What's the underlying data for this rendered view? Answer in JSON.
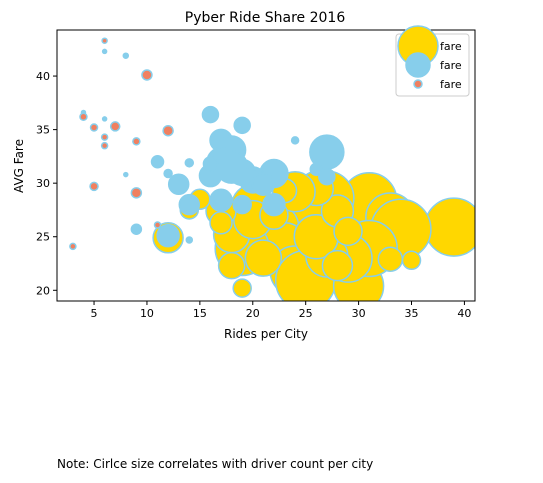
{
  "chart_data": {
    "type": "scatter",
    "title": "Pyber Ride Share 2016",
    "xlabel": "Rides per City",
    "ylabel": "AVG Fare",
    "xlim": [
      1.5,
      41
    ],
    "ylim": [
      19,
      44.3
    ],
    "xticks": [
      5,
      10,
      15,
      20,
      25,
      30,
      35,
      40
    ],
    "yticks": [
      20,
      25,
      30,
      35,
      40
    ],
    "grid": false,
    "legend_position": "top-right",
    "legend": [
      {
        "label": "fare",
        "color": "#FFD700"
      },
      {
        "label": "fare",
        "color": "#87CEEB"
      },
      {
        "label": "fare",
        "color": "#F08060"
      }
    ],
    "size_note": "Cirlce size correlates with driver count per city",
    "series": [
      {
        "color": "#FFD700",
        "edge": "#87CEEB",
        "points": [
          {
            "x": 39,
            "y": 25.9,
            "s": 58
          },
          {
            "x": 31,
            "y": 28.4,
            "s": 55
          },
          {
            "x": 33,
            "y": 26.8,
            "s": 49
          },
          {
            "x": 34,
            "y": 25.7,
            "s": 60
          },
          {
            "x": 27,
            "y": 28.6,
            "s": 54
          },
          {
            "x": 25,
            "y": 26.6,
            "s": 64
          },
          {
            "x": 22,
            "y": 25.8,
            "s": 50
          },
          {
            "x": 23,
            "y": 24.2,
            "s": 45
          },
          {
            "x": 19,
            "y": 23.9,
            "s": 54
          },
          {
            "x": 24,
            "y": 21.8,
            "s": 50
          },
          {
            "x": 25,
            "y": 20.9,
            "s": 60
          },
          {
            "x": 30,
            "y": 20.4,
            "s": 50
          },
          {
            "x": 31,
            "y": 23.9,
            "s": 56
          },
          {
            "x": 29,
            "y": 23.0,
            "s": 48
          },
          {
            "x": 27,
            "y": 23.2,
            "s": 42
          },
          {
            "x": 26,
            "y": 25.0,
            "s": 44
          },
          {
            "x": 28,
            "y": 27.4,
            "s": 32
          },
          {
            "x": 26,
            "y": 29.5,
            "s": 34
          },
          {
            "x": 24,
            "y": 29.2,
            "s": 40
          },
          {
            "x": 20,
            "y": 27.9,
            "s": 42
          },
          {
            "x": 18,
            "y": 25.2,
            "s": 36
          },
          {
            "x": 20,
            "y": 26.6,
            "s": 38
          },
          {
            "x": 17,
            "y": 27.4,
            "s": 30
          },
          {
            "x": 17,
            "y": 26.3,
            "s": 22
          },
          {
            "x": 15,
            "y": 28.5,
            "s": 20
          },
          {
            "x": 14,
            "y": 27.5,
            "s": 18
          },
          {
            "x": 12,
            "y": 24.9,
            "s": 30
          },
          {
            "x": 18,
            "y": 22.3,
            "s": 26
          },
          {
            "x": 19,
            "y": 20.2,
            "s": 18
          },
          {
            "x": 21,
            "y": 23.0,
            "s": 36
          },
          {
            "x": 22,
            "y": 27.0,
            "s": 28
          },
          {
            "x": 29,
            "y": 25.5,
            "s": 28
          },
          {
            "x": 33,
            "y": 22.9,
            "s": 24
          },
          {
            "x": 35,
            "y": 22.8,
            "s": 18
          },
          {
            "x": 23,
            "y": 29.3,
            "s": 24
          },
          {
            "x": 28,
            "y": 22.3,
            "s": 30
          }
        ]
      },
      {
        "color": "#87CEEB",
        "edge": "#87CEEB",
        "points": [
          {
            "x": 16,
            "y": 36.4,
            "s": 16
          },
          {
            "x": 19,
            "y": 35.4,
            "s": 16
          },
          {
            "x": 17,
            "y": 34.0,
            "s": 22
          },
          {
            "x": 18,
            "y": 33.1,
            "s": 28
          },
          {
            "x": 27,
            "y": 32.9,
            "s": 34
          },
          {
            "x": 11,
            "y": 32.0,
            "s": 12
          },
          {
            "x": 26,
            "y": 31.3,
            "s": 12
          },
          {
            "x": 22,
            "y": 30.9,
            "s": 28
          },
          {
            "x": 16,
            "y": 30.7,
            "s": 22
          },
          {
            "x": 13,
            "y": 29.9,
            "s": 20
          },
          {
            "x": 20,
            "y": 30.3,
            "s": 26
          },
          {
            "x": 27,
            "y": 30.6,
            "s": 16
          },
          {
            "x": 19,
            "y": 31.0,
            "s": 26
          },
          {
            "x": 17,
            "y": 32.0,
            "s": 28
          },
          {
            "x": 18,
            "y": 31.5,
            "s": 32
          },
          {
            "x": 21,
            "y": 29.9,
            "s": 22
          },
          {
            "x": 17,
            "y": 28.4,
            "s": 22
          },
          {
            "x": 14,
            "y": 28.0,
            "s": 20
          },
          {
            "x": 22,
            "y": 28.0,
            "s": 22
          },
          {
            "x": 12,
            "y": 25.1,
            "s": 22
          },
          {
            "x": 9,
            "y": 25.7,
            "s": 10
          },
          {
            "x": 14,
            "y": 24.7,
            "s": 6
          },
          {
            "x": 12,
            "y": 30.9,
            "s": 8
          },
          {
            "x": 14,
            "y": 31.9,
            "s": 8
          },
          {
            "x": 16,
            "y": 31.8,
            "s": 14
          },
          {
            "x": 24,
            "y": 34.0,
            "s": 7
          },
          {
            "x": 19,
            "y": 28.0,
            "s": 18
          },
          {
            "x": 6,
            "y": 42.3,
            "s": 4
          },
          {
            "x": 8,
            "y": 41.9,
            "s": 5
          },
          {
            "x": 6,
            "y": 36.0,
            "s": 4
          },
          {
            "x": 4,
            "y": 36.6,
            "s": 4
          },
          {
            "x": 8,
            "y": 30.8,
            "s": 4
          }
        ]
      },
      {
        "color": "#F08060",
        "edge": "#87CEEB",
        "points": [
          {
            "x": 6,
            "y": 43.3,
            "s": 5
          },
          {
            "x": 10,
            "y": 40.1,
            "s": 10
          },
          {
            "x": 4,
            "y": 36.2,
            "s": 7
          },
          {
            "x": 5,
            "y": 35.2,
            "s": 7
          },
          {
            "x": 7,
            "y": 35.3,
            "s": 9
          },
          {
            "x": 12,
            "y": 34.9,
            "s": 10
          },
          {
            "x": 6,
            "y": 34.3,
            "s": 6
          },
          {
            "x": 9,
            "y": 33.9,
            "s": 7
          },
          {
            "x": 6,
            "y": 33.5,
            "s": 6
          },
          {
            "x": 5,
            "y": 29.7,
            "s": 8
          },
          {
            "x": 9,
            "y": 29.1,
            "s": 10
          },
          {
            "x": 11,
            "y": 26.1,
            "s": 6
          },
          {
            "x": 3,
            "y": 24.1,
            "s": 6
          }
        ]
      }
    ]
  }
}
